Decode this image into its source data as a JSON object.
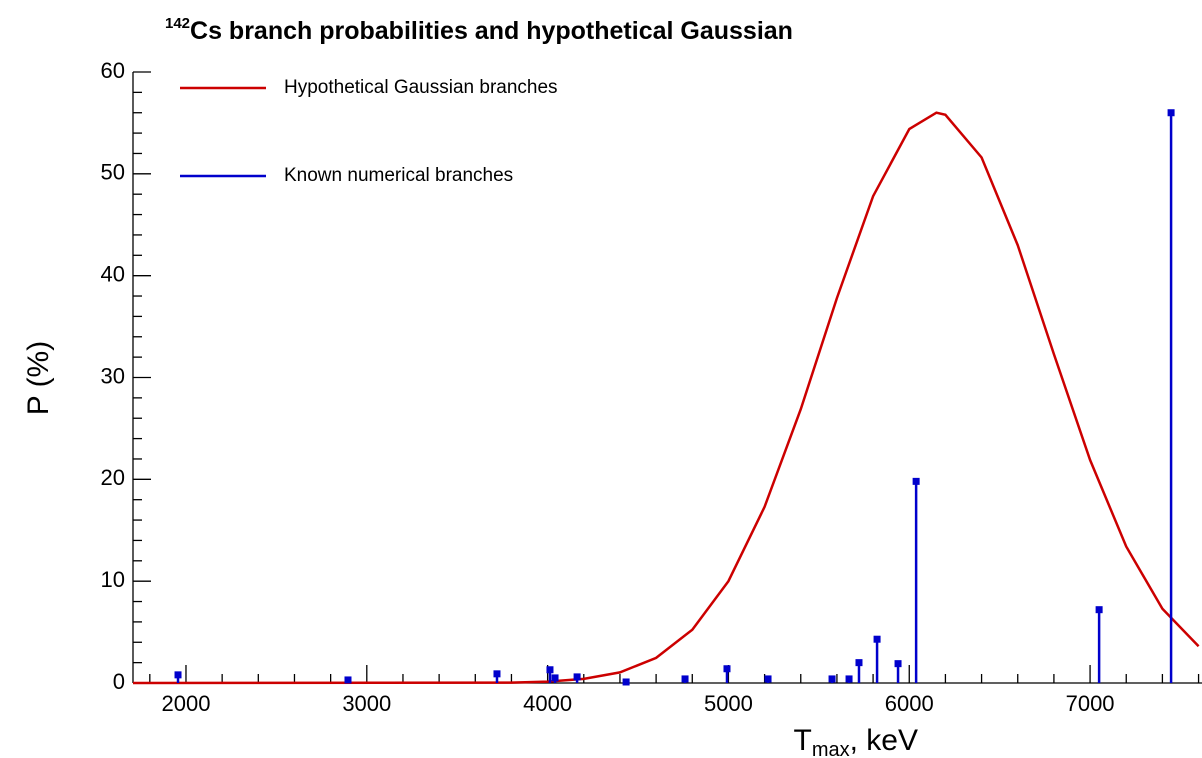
{
  "chart_data": {
    "type": "line",
    "title_sup": "142",
    "title": "Cs branch probabilities and hypothetical Gaussian",
    "ylabel": "P (%)",
    "xlabel_main": "T",
    "xlabel_sub": "max",
    "xlabel_rest": ", keV",
    "xlim": [
      1707,
      7619
    ],
    "ylim": [
      0,
      60
    ],
    "xticks": [
      2000,
      3000,
      4000,
      5000,
      6000,
      7000
    ],
    "yticks": [
      0,
      10,
      20,
      30,
      40,
      50,
      60
    ],
    "legend": "top-left",
    "series": [
      {
        "name": "Hypothetical Gaussian branches",
        "color": "#cc0000",
        "style": "line",
        "x": [
          1707,
          3800,
          4000,
          4200,
          4400,
          4600,
          4800,
          5000,
          5200,
          5400,
          5600,
          5800,
          6000,
          6150,
          6200,
          6400,
          6600,
          6800,
          7000,
          7200,
          7400,
          7600
        ],
        "values": [
          0,
          0.04,
          0.14,
          0.4,
          1.04,
          2.46,
          5.23,
          10.0,
          17.3,
          26.9,
          37.8,
          47.8,
          54.4,
          56,
          55.8,
          51.6,
          43.0,
          32.3,
          21.9,
          13.4,
          7.3,
          3.6
        ]
      },
      {
        "name": "Known numerical branches",
        "color": "#0000cc",
        "style": "stem",
        "x": [
          1956,
          2896,
          3720,
          4013,
          4041,
          4163,
          4434,
          4760,
          4992,
          5219,
          5573,
          5667,
          5722,
          5822,
          5938,
          6038,
          7050,
          7448
        ],
        "values": [
          0.8,
          0.3,
          0.9,
          1.3,
          0.5,
          0.6,
          0.1,
          0.4,
          1.4,
          0.4,
          0.4,
          0.4,
          2.0,
          4.3,
          1.9,
          19.8,
          7.2,
          56.0
        ]
      }
    ]
  }
}
